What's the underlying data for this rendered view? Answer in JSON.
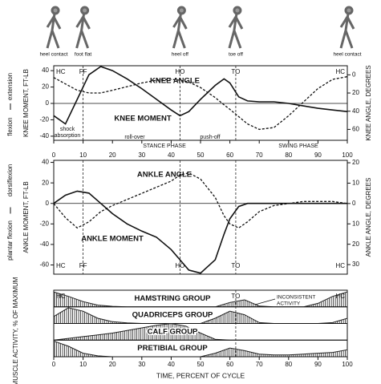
{
  "gait_figure": {
    "labels": [
      "heel contact",
      "foot flat",
      "heel off",
      "toe off",
      "heel contact"
    ]
  },
  "chart_data": [
    {
      "type": "line",
      "ylabel": "KNEE MOMENT, FT-LB",
      "y2label": "KNEE ANGLE, DEGREES",
      "side_labels": [
        "extension",
        "flexion"
      ],
      "x": [
        0,
        4,
        8,
        12,
        16,
        20,
        25,
        30,
        35,
        40,
        43,
        46,
        50,
        55,
        58,
        60,
        63,
        66,
        70,
        75,
        80,
        85,
        90,
        95,
        100
      ],
      "series": [
        {
          "name": "KNEE ANGLE",
          "color": "#111111",
          "dash": true,
          "axis": "y2",
          "values": [
            3,
            10,
            17,
            20,
            20,
            17,
            13,
            9,
            6,
            5,
            6,
            8,
            14,
            25,
            33,
            38,
            46,
            54,
            60,
            58,
            45,
            30,
            15,
            5,
            2
          ]
        },
        {
          "name": "KNEE MOMENT",
          "color": "#111111",
          "dash": false,
          "values": [
            -15,
            -25,
            5,
            35,
            45,
            40,
            30,
            18,
            5,
            -8,
            -15,
            -10,
            5,
            22,
            30,
            25,
            8,
            3,
            2,
            2,
            0,
            -3,
            -6,
            -8,
            -10
          ]
        }
      ],
      "xlim": [
        0,
        100
      ],
      "xticks": [
        0,
        10,
        20,
        30,
        40,
        50,
        60,
        70,
        80,
        90,
        100
      ],
      "ylim": [
        -45,
        46
      ],
      "yticks": [
        40,
        20,
        0,
        -20,
        -40
      ],
      "y2lim": [
        72,
        -10
      ],
      "y2ticks": [
        0,
        20,
        40,
        60
      ],
      "zero_line": true,
      "events": {
        "labels": [
          "HC",
          "FF",
          "HO",
          "TO",
          "HC"
        ],
        "x": [
          0,
          10,
          43,
          62,
          100
        ]
      },
      "annotations": [
        "shock",
        "absorption",
        "roll-over",
        "push-off",
        "STANCE PHASE",
        "SWING PHASE"
      ]
    },
    {
      "type": "line",
      "ylabel": "ANKLE MOMENT, FT-LB",
      "y2label": "ANKLE ANGLE, DEGREES",
      "side_labels": [
        "dorsiflexion",
        "plantar flexion"
      ],
      "x": [
        0,
        4,
        8,
        12,
        16,
        20,
        25,
        30,
        35,
        40,
        43,
        46,
        50,
        55,
        58,
        60,
        63,
        66,
        70,
        75,
        80,
        85,
        90,
        95,
        100
      ],
      "series": [
        {
          "name": "ANKLE ANGLE",
          "color": "#111111",
          "dash": true,
          "axis": "y2",
          "values": [
            0,
            -7,
            -12,
            -9,
            -4,
            -1,
            2,
            5,
            8,
            11,
            14,
            15,
            12,
            3,
            -6,
            -10,
            -12,
            -9,
            -4,
            -1,
            0,
            1,
            1,
            1,
            0
          ]
        },
        {
          "name": "ANKLE MOMENT",
          "color": "#111111",
          "dash": false,
          "values": [
            0,
            8,
            12,
            10,
            0,
            -10,
            -20,
            -27,
            -33,
            -45,
            -55,
            -65,
            -68,
            -55,
            -30,
            -15,
            -3,
            0,
            0,
            0,
            0,
            0,
            0,
            0,
            0
          ]
        }
      ],
      "xlim": [
        0,
        100
      ],
      "ylim": [
        -69,
        42
      ],
      "yticks": [
        40,
        20,
        0,
        -20,
        -40,
        -60
      ],
      "y2lim": [
        -34.7,
        21.2
      ],
      "y2ticks": [
        20,
        10,
        0,
        {
          "value": -10,
          "label": "10"
        },
        {
          "value": -20,
          "label": "20"
        },
        {
          "value": -30,
          "label": "30"
        }
      ],
      "zero_line": true,
      "events": {
        "labels": [
          "HC",
          "FF",
          "HO",
          "TO",
          "HC"
        ],
        "x": [
          0,
          10,
          43,
          62,
          100
        ]
      },
      "annotations": []
    },
    {
      "type": "area",
      "ylabel": "MUSCLE ACTIVITY, % OF MAXIMUM",
      "xlabel": "TIME, PERCENT OF CYCLE",
      "x": [
        0,
        5,
        10,
        15,
        20,
        25,
        30,
        35,
        40,
        45,
        50,
        55,
        60,
        65,
        70,
        75,
        80,
        85,
        90,
        95,
        100
      ],
      "series": [
        {
          "name": "HAMSTRING GROUP",
          "color": "#222222",
          "values": [
            85,
            60,
            30,
            10,
            3,
            0,
            0,
            0,
            0,
            0,
            0,
            0,
            25,
            40,
            5,
            0,
            0,
            0,
            20,
            60,
            85
          ]
        },
        {
          "name": "QUADRICEPS GROUP",
          "color": "#222222",
          "values": [
            40,
            90,
            70,
            30,
            10,
            3,
            0,
            0,
            0,
            0,
            0,
            30,
            70,
            50,
            5,
            0,
            0,
            0,
            0,
            5,
            30
          ]
        },
        {
          "name": "CALF GROUP",
          "color": "#222222",
          "values": [
            0,
            10,
            20,
            30,
            40,
            55,
            70,
            85,
            95,
            80,
            40,
            5,
            0,
            0,
            0,
            0,
            0,
            0,
            0,
            0,
            0
          ]
        },
        {
          "name": "PRETIBIAL GROUP",
          "color": "#222222",
          "values": [
            90,
            60,
            20,
            5,
            0,
            0,
            0,
            0,
            0,
            0,
            0,
            20,
            50,
            35,
            15,
            10,
            10,
            15,
            20,
            25,
            40
          ]
        }
      ],
      "xlim": [
        0,
        100
      ],
      "xticks": [
        0,
        10,
        20,
        30,
        40,
        50,
        60,
        70,
        80,
        90,
        100
      ],
      "ylim": [
        0,
        100
      ],
      "events": {
        "labels": [
          "HC",
          "TO",
          "HC"
        ],
        "x": [
          0,
          62,
          100
        ]
      },
      "annotations": [
        "INCONSISTENT",
        "ACTIVITY"
      ]
    }
  ]
}
